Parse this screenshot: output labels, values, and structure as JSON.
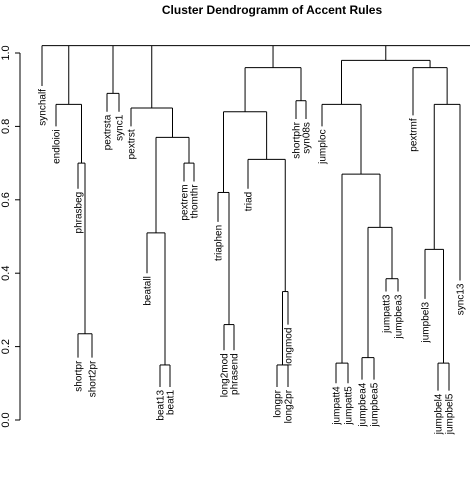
{
  "chart_data": {
    "type": "dendrogram",
    "title": "Cluster Dendrogramm of Accent Rules",
    "xlabel": "",
    "ylabel": "",
    "ylim": [
      0,
      1.0
    ],
    "yticks": [
      "0.0",
      "0.2",
      "0.4",
      "0.6",
      "0.8",
      "1.0"
    ],
    "grid": false,
    "leaves": [
      {
        "id": "synchalf",
        "label": "synchalf",
        "end": 0.91
      },
      {
        "id": "endloioi",
        "label": "endloioi",
        "end": 0.8
      },
      {
        "id": "phrasbeg",
        "label": "phrasbeg",
        "end": 0.63
      },
      {
        "id": "shortpr",
        "label": "shortpr",
        "end": 0.17
      },
      {
        "id": "short2pr",
        "label": "short2pr",
        "end": 0.17
      },
      {
        "id": "pextrsta",
        "label": "pextrsta",
        "end": 0.84
      },
      {
        "id": "sync1",
        "label": "sync1",
        "end": 0.84
      },
      {
        "id": "pextrst",
        "label": "pextrst",
        "end": 0.8
      },
      {
        "id": "beatall",
        "label": "beatall",
        "end": 0.4
      },
      {
        "id": "beat13",
        "label": "beat13",
        "end": 0.09
      },
      {
        "id": "beat1",
        "label": "beat1",
        "end": 0.09
      },
      {
        "id": "pextrem",
        "label": "pextrem",
        "end": 0.65
      },
      {
        "id": "thomthr",
        "label": "thomthr",
        "end": 0.65
      },
      {
        "id": "triaphen",
        "label": "triaphen",
        "end": 0.54
      },
      {
        "id": "long2mod",
        "label": "long2mod",
        "end": 0.19
      },
      {
        "id": "phrasend",
        "label": "phrasend",
        "end": 0.19
      },
      {
        "id": "triad",
        "label": "triad",
        "end": 0.63
      },
      {
        "id": "longmod",
        "label": "longmod",
        "end": 0.26
      },
      {
        "id": "longpr",
        "label": "longpr",
        "end": 0.09
      },
      {
        "id": "long2pr",
        "label": "long2pr",
        "end": 0.09
      },
      {
        "id": "shortphr",
        "label": "shortphr",
        "end": 0.82
      },
      {
        "id": "syn08s",
        "label": "syn08s",
        "end": 0.82
      },
      {
        "id": "jumploc",
        "label": "jumploc",
        "end": 0.8
      },
      {
        "id": "jumpatt4",
        "label": "jumpatt4",
        "end": 0.1
      },
      {
        "id": "jumpatt5",
        "label": "jumpatt5",
        "end": 0.1
      },
      {
        "id": "jumpbea4",
        "label": "jumpbea4",
        "end": 0.11
      },
      {
        "id": "jumpbea5",
        "label": "jumpbea5",
        "end": 0.11
      },
      {
        "id": "jumpatt3",
        "label": "jumpatt3",
        "end": 0.35
      },
      {
        "id": "jumpbea3",
        "label": "jumpbea3",
        "end": 0.35
      },
      {
        "id": "pextrmf",
        "label": "pextrmf",
        "end": 0.83
      },
      {
        "id": "jumpbel3",
        "label": "jumpbel3",
        "end": 0.33
      },
      {
        "id": "jumpbel4",
        "label": "jumpbel4",
        "end": 0.08
      },
      {
        "id": "jumpbel5",
        "label": "jumpbel5",
        "end": 0.08
      },
      {
        "id": "sync13",
        "label": "sync13",
        "end": 0.38
      }
    ],
    "merges": [
      {
        "id": "m_shortpr",
        "height": 0.235,
        "children": [
          "shortpr",
          "short2pr"
        ]
      },
      {
        "id": "m_phrasbeg",
        "height": 0.7,
        "children": [
          "phrasbeg",
          "m_shortpr"
        ]
      },
      {
        "id": "m_endloioi",
        "height": 0.86,
        "children": [
          "endloioi",
          "m_phrasbeg"
        ]
      },
      {
        "id": "m_pextrsta",
        "height": 0.89,
        "children": [
          "pextrsta",
          "sync1"
        ]
      },
      {
        "id": "m_beat13",
        "height": 0.15,
        "children": [
          "beat13",
          "beat1"
        ]
      },
      {
        "id": "m_beatall",
        "height": 0.51,
        "children": [
          "beatall",
          "m_beat13"
        ]
      },
      {
        "id": "m_pextrem",
        "height": 0.7,
        "children": [
          "pextrem",
          "thomthr"
        ]
      },
      {
        "id": "m_beatgrp",
        "height": 0.77,
        "children": [
          "m_beatall",
          "m_pextrem"
        ]
      },
      {
        "id": "m_pextrst",
        "height": 0.85,
        "children": [
          "pextrst",
          "m_beatgrp"
        ]
      },
      {
        "id": "m_long2mod",
        "height": 0.26,
        "children": [
          "long2mod",
          "phrasend"
        ]
      },
      {
        "id": "m_triaphen",
        "height": 0.62,
        "children": [
          "triaphen",
          "m_long2mod"
        ]
      },
      {
        "id": "m_longpr",
        "height": 0.15,
        "children": [
          "longpr",
          "long2pr"
        ]
      },
      {
        "id": "m_longmod",
        "height": 0.35,
        "children": [
          "longmod",
          "m_longpr"
        ]
      },
      {
        "id": "m_triad",
        "height": 0.71,
        "children": [
          "triad",
          "m_longmod"
        ]
      },
      {
        "id": "m_triagrp",
        "height": 0.84,
        "children": [
          "m_triaphen",
          "m_triad"
        ]
      },
      {
        "id": "m_shortphr",
        "height": 0.87,
        "children": [
          "shortphr",
          "syn08s"
        ]
      },
      {
        "id": "m_mid",
        "height": 0.96,
        "children": [
          "m_triagrp",
          "m_shortphr"
        ]
      },
      {
        "id": "m_jumpatt4",
        "height": 0.155,
        "children": [
          "jumpatt4",
          "jumpatt5"
        ]
      },
      {
        "id": "m_jumpbea4",
        "height": 0.17,
        "children": [
          "jumpbea4",
          "jumpbea5"
        ]
      },
      {
        "id": "m_jumpatt3",
        "height": 0.385,
        "children": [
          "jumpatt3",
          "jumpbea3"
        ]
      },
      {
        "id": "m_jumpbeagrp",
        "height": 0.525,
        "children": [
          "m_jumpbea4",
          "m_jumpatt3"
        ]
      },
      {
        "id": "m_jumpgrp",
        "height": 0.67,
        "children": [
          "m_jumpatt4",
          "m_jumpbeagrp"
        ]
      },
      {
        "id": "m_jumploc",
        "height": 0.86,
        "children": [
          "jumploc",
          "m_jumpgrp"
        ]
      },
      {
        "id": "m_jumpbel4",
        "height": 0.155,
        "children": [
          "jumpbel4",
          "jumpbel5"
        ]
      },
      {
        "id": "m_jumpbel3",
        "height": 0.465,
        "children": [
          "jumpbel3",
          "m_jumpbel4"
        ]
      },
      {
        "id": "m_jumpbelgrp",
        "height": 0.86,
        "children": [
          "m_jumpbel3",
          "sync13"
        ]
      },
      {
        "id": "m_pextrmf",
        "height": 0.96,
        "children": [
          "pextrmf",
          "m_jumpbelgrp"
        ]
      },
      {
        "id": "m_right",
        "height": 0.98,
        "children": [
          "m_jumploc",
          "m_pextrmf"
        ]
      },
      {
        "id": "root",
        "height": 1.02,
        "children": [
          "synchalf",
          "m_endloioi",
          "m_pextrsta",
          "m_pextrst",
          "m_mid",
          "m_right"
        ]
      }
    ]
  }
}
